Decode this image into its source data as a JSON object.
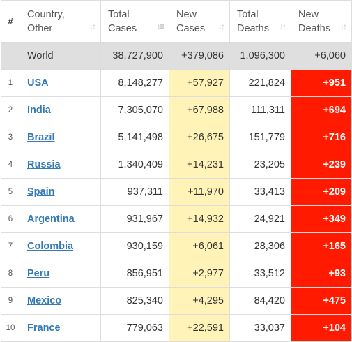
{
  "table": {
    "headers": {
      "num": "#",
      "country": [
        "Country,",
        "Other"
      ],
      "total_cases": [
        "Total",
        "Cases"
      ],
      "new_cases": [
        "New",
        "Cases"
      ],
      "total_deaths": [
        "Total",
        "Deaths"
      ],
      "new_deaths": [
        "New",
        "Deaths"
      ]
    },
    "sort_icons": {
      "country": "sort-icon",
      "total_cases": "sort-desc-active-icon",
      "new_cases": "sort-icon",
      "total_deaths": "sort-icon",
      "new_deaths": "sort-icon"
    },
    "world": {
      "country": "World",
      "total_cases": "38,727,900",
      "new_cases": "+379,086",
      "total_deaths": "1,096,300",
      "new_deaths": "+6,060"
    },
    "rows": [
      {
        "num": "1",
        "country": "USA",
        "total_cases": "8,148,277",
        "new_cases": "+57,927",
        "total_deaths": "221,824",
        "new_deaths": "+951"
      },
      {
        "num": "2",
        "country": "India",
        "total_cases": "7,305,070",
        "new_cases": "+67,988",
        "total_deaths": "111,311",
        "new_deaths": "+694"
      },
      {
        "num": "3",
        "country": "Brazil",
        "total_cases": "5,141,498",
        "new_cases": "+26,675",
        "total_deaths": "151,779",
        "new_deaths": "+716"
      },
      {
        "num": "4",
        "country": "Russia",
        "total_cases": "1,340,409",
        "new_cases": "+14,231",
        "total_deaths": "23,205",
        "new_deaths": "+239"
      },
      {
        "num": "5",
        "country": "Spain",
        "total_cases": "937,311",
        "new_cases": "+11,970",
        "total_deaths": "33,413",
        "new_deaths": "+209"
      },
      {
        "num": "6",
        "country": "Argentina",
        "total_cases": "931,967",
        "new_cases": "+14,932",
        "total_deaths": "24,921",
        "new_deaths": "+349"
      },
      {
        "num": "7",
        "country": "Colombia",
        "total_cases": "930,159",
        "new_cases": "+6,061",
        "total_deaths": "28,306",
        "new_deaths": "+165"
      },
      {
        "num": "8",
        "country": "Peru",
        "total_cases": "856,951",
        "new_cases": "+2,977",
        "total_deaths": "33,512",
        "new_deaths": "+93"
      },
      {
        "num": "9",
        "country": "Mexico",
        "total_cases": "825,340",
        "new_cases": "+4,295",
        "total_deaths": "84,420",
        "new_deaths": "+475"
      },
      {
        "num": "10",
        "country": "France",
        "total_cases": "779,063",
        "new_cases": "+22,591",
        "total_deaths": "33,037",
        "new_deaths": "+104"
      }
    ]
  },
  "colors": {
    "new_cases_highlight": "#fff3b8",
    "new_deaths_highlight": "#ff1a00",
    "world_row_background": "#dfdfdf",
    "country_link": "#337ab7"
  }
}
